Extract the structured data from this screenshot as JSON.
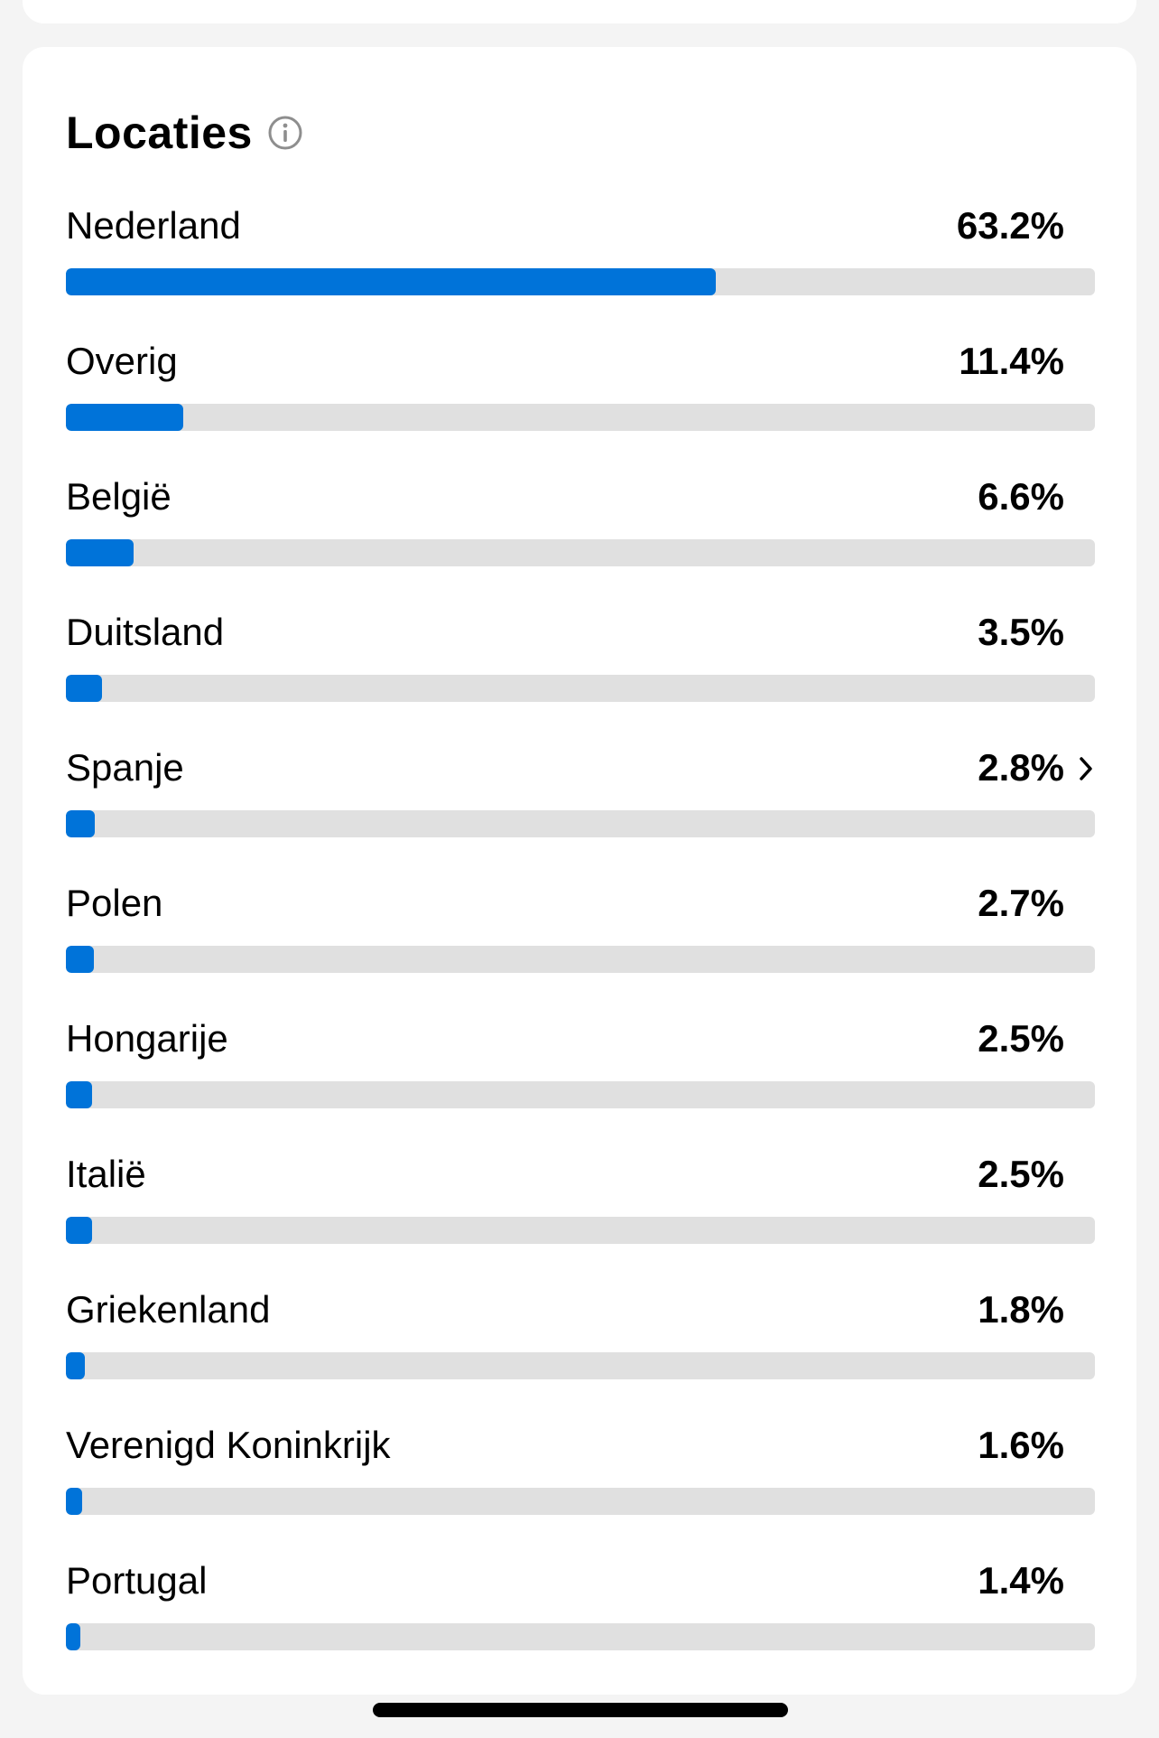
{
  "section": {
    "title": "Locaties",
    "info_icon": "info-circle-icon"
  },
  "colors": {
    "accent": "#0073d9",
    "track": "#e0e0e0",
    "card": "#ffffff",
    "background": "#f4f4f4"
  },
  "locations": [
    {
      "label": "Nederland",
      "value": "63.2%",
      "fraction": 0.632,
      "chevron": false
    },
    {
      "label": "Overig",
      "value": "11.4%",
      "fraction": 0.114,
      "chevron": false
    },
    {
      "label": "België",
      "value": "6.6%",
      "fraction": 0.066,
      "chevron": false
    },
    {
      "label": "Duitsland",
      "value": "3.5%",
      "fraction": 0.035,
      "chevron": false
    },
    {
      "label": "Spanje",
      "value": "2.8%",
      "fraction": 0.028,
      "chevron": true
    },
    {
      "label": "Polen",
      "value": "2.7%",
      "fraction": 0.027,
      "chevron": false
    },
    {
      "label": "Hongarije",
      "value": "2.5%",
      "fraction": 0.025,
      "chevron": false
    },
    {
      "label": "Italië",
      "value": "2.5%",
      "fraction": 0.025,
      "chevron": false
    },
    {
      "label": "Griekenland",
      "value": "1.8%",
      "fraction": 0.018,
      "chevron": false
    },
    {
      "label": "Verenigd Koninkrijk",
      "value": "1.6%",
      "fraction": 0.016,
      "chevron": false
    },
    {
      "label": "Portugal",
      "value": "1.4%",
      "fraction": 0.014,
      "chevron": false
    }
  ]
}
